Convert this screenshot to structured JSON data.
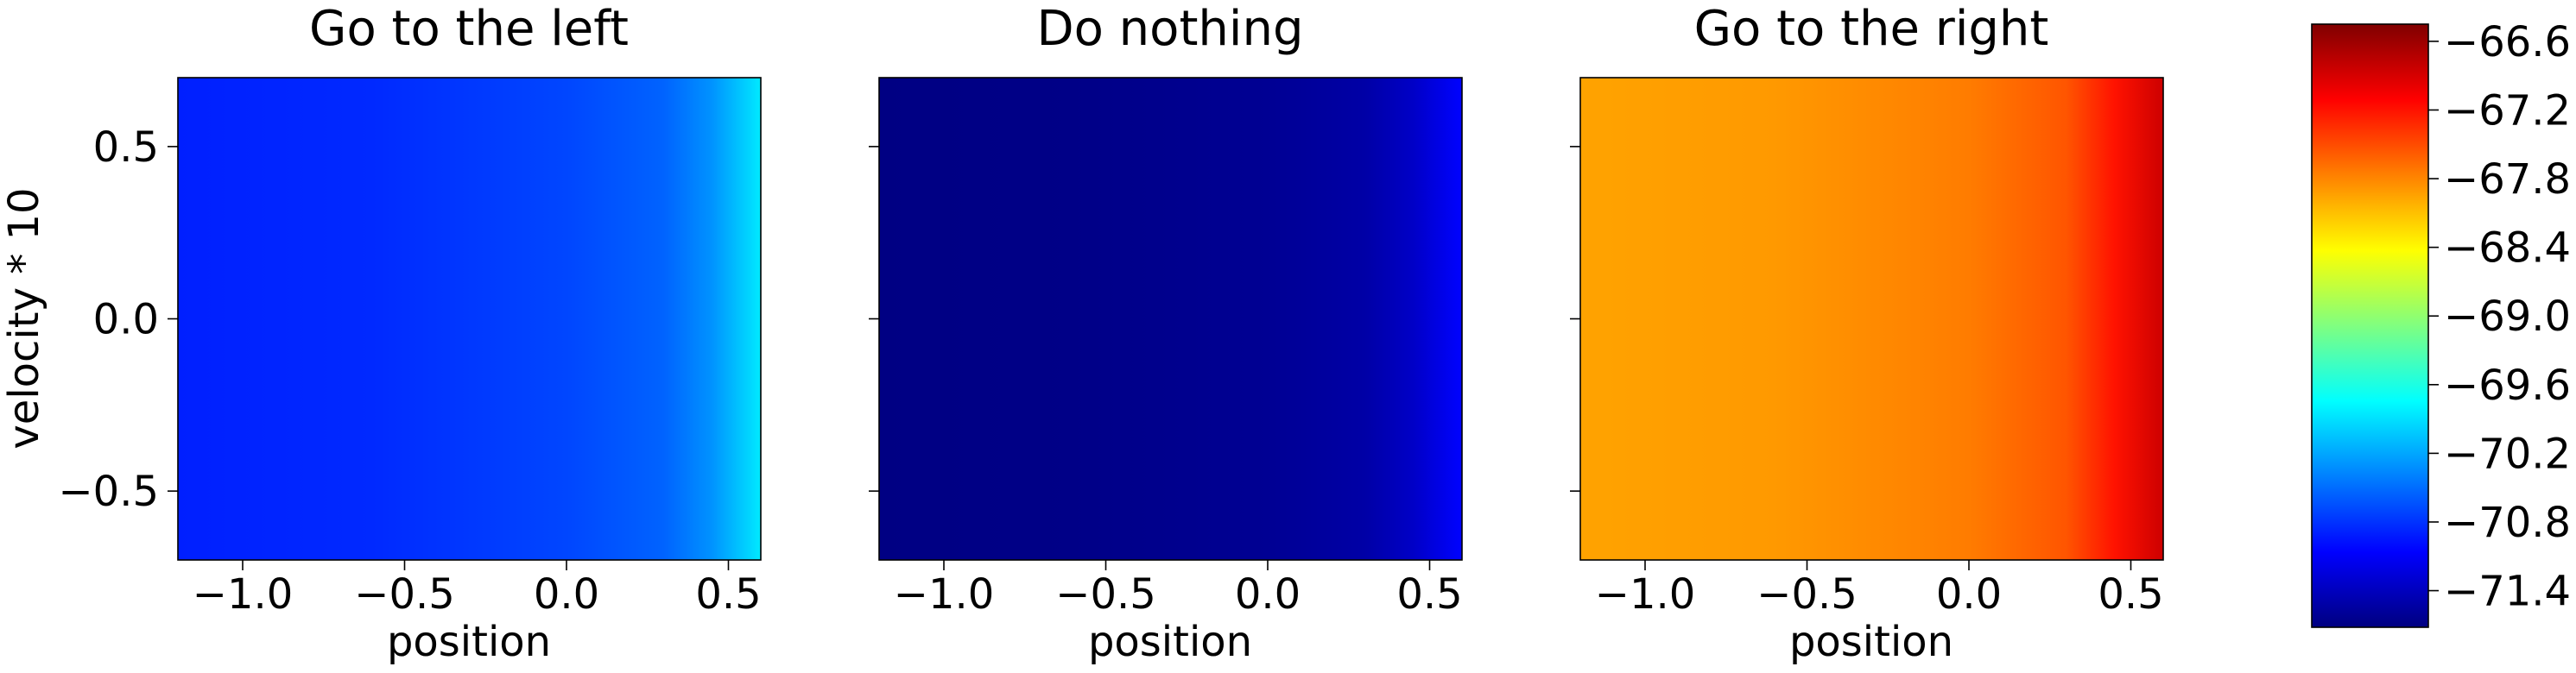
{
  "chart_data": [
    {
      "type": "heatmap",
      "title": "Go to the left",
      "xlabel": "position",
      "ylabel": "velocity * 10",
      "xlim": [
        -1.2,
        0.6
      ],
      "ylim": [
        0.7,
        -0.7
      ],
      "x_ticks": [
        -1.0,
        -0.5,
        0.0,
        0.5
      ],
      "x_tick_labels": [
        "−1.0",
        "−0.5",
        "0.0",
        "0.5"
      ],
      "y_ticks": [
        -0.5,
        0.0,
        0.5
      ],
      "y_tick_labels": [
        "−0.5",
        "0.0",
        "0.5"
      ],
      "value_profile_along_position": {
        "x": [
          -1.2,
          -0.6,
          0.0,
          0.3,
          0.45,
          0.6
        ],
        "values": [
          -70.9,
          -70.85,
          -70.7,
          -70.55,
          -70.3,
          -69.85
        ]
      }
    },
    {
      "type": "heatmap",
      "title": "Do nothing",
      "xlabel": "position",
      "ylabel": "",
      "xlim": [
        -1.2,
        0.6
      ],
      "ylim": [
        0.7,
        -0.7
      ],
      "x_ticks": [
        -1.0,
        -0.5,
        0.0,
        0.5
      ],
      "x_tick_labels": [
        "−1.0",
        "−0.5",
        "0.0",
        "0.5"
      ],
      "y_ticks": [
        -0.5,
        0.0,
        0.5
      ],
      "y_tick_labels": [],
      "value_profile_along_position": {
        "x": [
          -1.2,
          -0.6,
          0.0,
          0.3,
          0.45,
          0.6
        ],
        "values": [
          -71.7,
          -71.68,
          -71.62,
          -71.52,
          -71.35,
          -71.05
        ]
      }
    },
    {
      "type": "heatmap",
      "title": "Go to the right",
      "xlabel": "position",
      "ylabel": "",
      "xlim": [
        -1.2,
        0.6
      ],
      "ylim": [
        0.7,
        -0.7
      ],
      "x_ticks": [
        -1.0,
        -0.5,
        0.0,
        0.5
      ],
      "x_tick_labels": [
        "−1.0",
        "−0.5",
        "0.0",
        "0.5"
      ],
      "y_ticks": [
        -0.5,
        0.0,
        0.5
      ],
      "y_tick_labels": [],
      "value_profile_along_position": {
        "x": [
          -1.2,
          -0.6,
          0.0,
          0.3,
          0.45,
          0.6
        ],
        "values": [
          -67.95,
          -67.9,
          -67.75,
          -67.55,
          -67.2,
          -66.85
        ]
      }
    }
  ],
  "colorbar": {
    "colormap": "jet",
    "range": [
      -71.72,
      -66.45
    ],
    "ticks": [
      -66.6,
      -67.2,
      -67.8,
      -68.4,
      -69.0,
      -69.6,
      -70.2,
      -70.8,
      -71.4
    ],
    "tick_labels": [
      "−66.6",
      "−67.2",
      "−67.8",
      "−68.4",
      "−69.0",
      "−69.6",
      "−70.2",
      "−70.8",
      "−71.4"
    ]
  }
}
